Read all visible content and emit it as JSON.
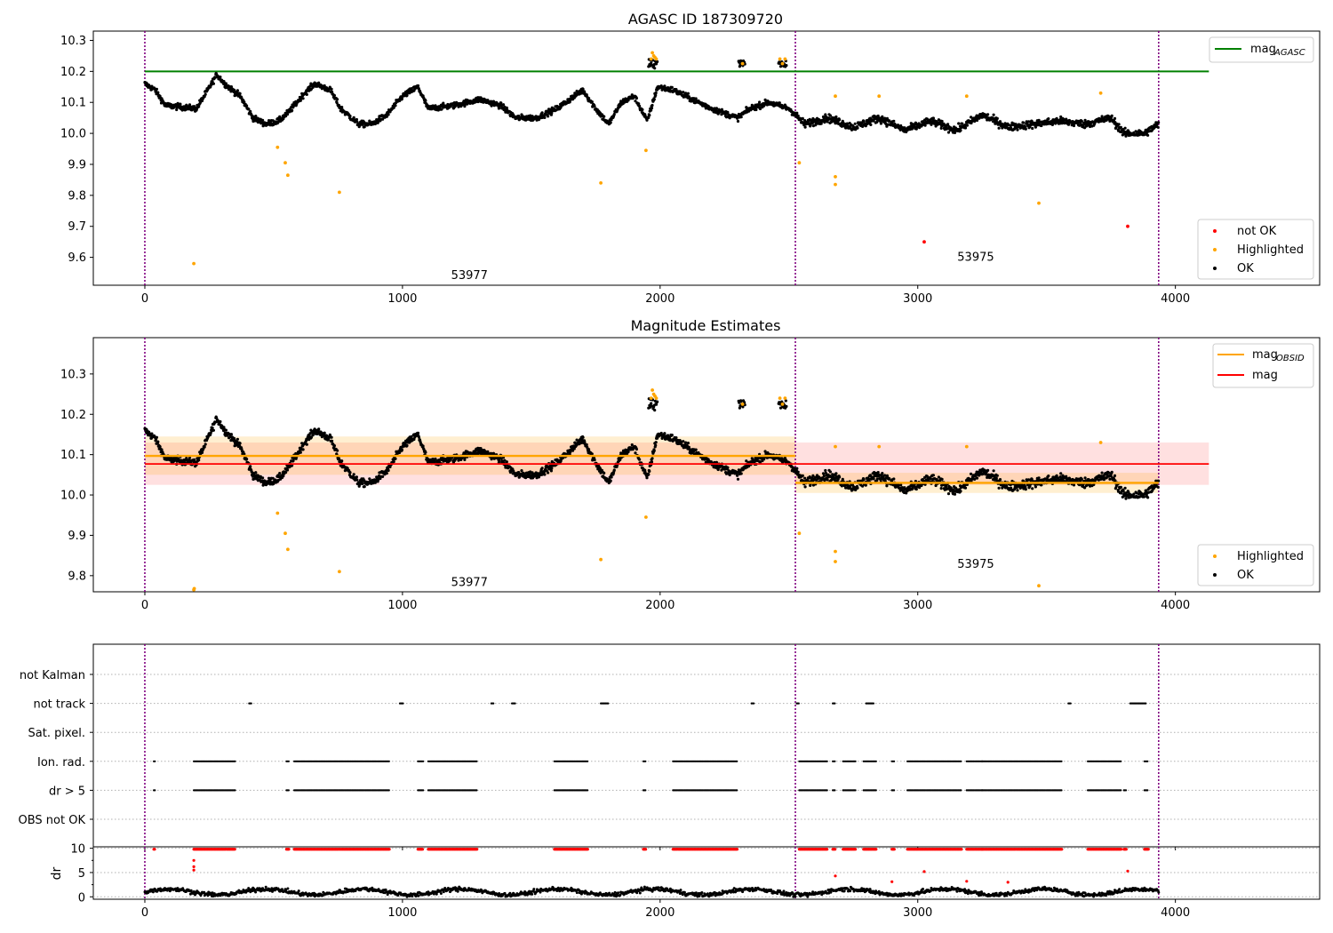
{
  "chart_data": [
    {
      "panel": "top",
      "type": "scatter",
      "title": "AGASC ID 187309720",
      "xlabel": "",
      "ylabel": "",
      "xlim": [
        -200,
        4560
      ],
      "ylim": [
        9.51,
        10.33
      ],
      "xticks": [
        0,
        1000,
        2000,
        3000,
        4000
      ],
      "yticks": [
        9.6,
        9.7,
        9.8,
        9.9,
        10.0,
        10.1,
        10.2,
        10.3
      ],
      "ytick_labels": [
        "9.6",
        "9.7",
        "9.8",
        "9.9",
        "10.0",
        "10.1",
        "10.2",
        "10.3"
      ],
      "grid": false,
      "obsid_boundaries": [
        0,
        2525,
        3935
      ],
      "annotations": [
        {
          "text": "53977",
          "x": 1260,
          "y": 9.545
        },
        {
          "text": "53975",
          "x": 3225,
          "y": 9.603
        }
      ],
      "agasc_mag": {
        "value": 10.2,
        "x": [
          0,
          4130
        ]
      },
      "legend_lines": {
        "position": "top-right",
        "entries": [
          {
            "label": "mag",
            "sub": "AGASC",
            "color": "#008000"
          }
        ]
      },
      "legend_points": {
        "position": "bottom-right",
        "entries": [
          {
            "label": "not OK",
            "color": "#ff0000"
          },
          {
            "label": "Highlighted",
            "color": "#ffa500"
          },
          {
            "label": "OK",
            "color": "#000000"
          }
        ]
      },
      "series": [
        {
          "name": "OK",
          "color": "#000000",
          "trend": [
            [
              0,
              10.16
            ],
            [
              40,
              10.14
            ],
            [
              80,
              10.09
            ],
            [
              200,
              10.08
            ],
            [
              230,
              10.12
            ],
            [
              280,
              10.19
            ],
            [
              310,
              10.16
            ],
            [
              370,
              10.12
            ],
            [
              420,
              10.05
            ],
            [
              470,
              10.03
            ],
            [
              520,
              10.04
            ],
            [
              560,
              10.07
            ],
            [
              620,
              10.13
            ],
            [
              660,
              10.16
            ],
            [
              720,
              10.14
            ],
            [
              760,
              10.08
            ],
            [
              830,
              10.03
            ],
            [
              880,
              10.03
            ],
            [
              940,
              10.06
            ],
            [
              1000,
              10.12
            ],
            [
              1060,
              10.15
            ],
            [
              1100,
              10.08
            ],
            [
              1200,
              10.09
            ],
            [
              1300,
              10.11
            ],
            [
              1380,
              10.09
            ],
            [
              1440,
              10.05
            ],
            [
              1520,
              10.05
            ],
            [
              1600,
              10.08
            ],
            [
              1700,
              10.14
            ],
            [
              1750,
              10.08
            ],
            [
              1800,
              10.03
            ],
            [
              1850,
              10.1
            ],
            [
              1900,
              10.12
            ],
            [
              1950,
              10.04
            ],
            [
              1990,
              10.15
            ],
            [
              2050,
              10.14
            ],
            [
              2100,
              10.12
            ],
            [
              2200,
              10.08
            ],
            [
              2300,
              10.05
            ],
            [
              2350,
              10.08
            ],
            [
              2420,
              10.1
            ],
            [
              2500,
              10.08
            ],
            [
              2525,
              10.06
            ],
            [
              2560,
              10.03
            ],
            [
              2650,
              10.05
            ],
            [
              2750,
              10.02
            ],
            [
              2850,
              10.05
            ],
            [
              2950,
              10.01
            ],
            [
              3050,
              10.04
            ],
            [
              3150,
              10.01
            ],
            [
              3250,
              10.06
            ],
            [
              3350,
              10.02
            ],
            [
              3450,
              10.03
            ],
            [
              3550,
              10.04
            ],
            [
              3650,
              10.03
            ],
            [
              3750,
              10.05
            ],
            [
              3800,
              10.0
            ],
            [
              3880,
              10.0
            ],
            [
              3935,
              10.03
            ]
          ]
        },
        {
          "name": "Highlighted",
          "color": "#ffa500",
          "points": [
            [
              190,
              9.58
            ],
            [
              515,
              9.955
            ],
            [
              545,
              9.905
            ],
            [
              555,
              9.865
            ],
            [
              755,
              9.81
            ],
            [
              1770,
              9.84
            ],
            [
              1945,
              9.945
            ],
            [
              2540,
              9.905
            ],
            [
              2680,
              9.835
            ],
            [
              2680,
              9.86
            ],
            [
              3470,
              9.775
            ],
            [
              1965,
              10.24
            ],
            [
              1970,
              10.26
            ],
            [
              1975,
              10.25
            ],
            [
              1980,
              10.245
            ],
            [
              1985,
              10.24
            ],
            [
              2320,
              10.225
            ],
            [
              2465,
              10.24
            ],
            [
              2475,
              10.225
            ],
            [
              2485,
              10.24
            ],
            [
              2680,
              10.12
            ],
            [
              2850,
              10.12
            ],
            [
              3190,
              10.12
            ],
            [
              3710,
              10.13
            ]
          ]
        },
        {
          "name": "not OK",
          "color": "#ff0000",
          "points": [
            [
              3025,
              9.65
            ],
            [
              3815,
              9.7
            ]
          ]
        }
      ]
    },
    {
      "panel": "middle",
      "type": "scatter",
      "title": "Magnitude Estimates",
      "xlabel": "",
      "ylabel": "",
      "xlim": [
        -200,
        4560
      ],
      "ylim": [
        9.76,
        10.39
      ],
      "xticks": [
        0,
        1000,
        2000,
        3000,
        4000
      ],
      "yticks": [
        9.8,
        9.9,
        10.0,
        10.1,
        10.2,
        10.3
      ],
      "ytick_labels": [
        "9.8",
        "9.9",
        "10.0",
        "10.1",
        "10.2",
        "10.3"
      ],
      "grid": false,
      "obsid_boundaries": [
        0,
        2525,
        3935
      ],
      "annotations": [
        {
          "text": "53977",
          "x": 1260,
          "y": 9.785
        },
        {
          "text": "53975",
          "x": 3225,
          "y": 9.83
        }
      ],
      "mag": {
        "value": 10.077,
        "band": [
          10.025,
          10.13
        ],
        "x": [
          0,
          4130
        ]
      },
      "mag_obsid": [
        {
          "x": [
            0,
            2525
          ],
          "value": 10.097,
          "band": [
            10.05,
            10.145
          ]
        },
        {
          "x": [
            2525,
            3935
          ],
          "value": 10.03,
          "band": [
            10.005,
            10.055
          ]
        }
      ],
      "legend_lines": {
        "position": "top-right",
        "entries": [
          {
            "label": "mag",
            "sub": "OBSID",
            "color": "#ffa500"
          },
          {
            "label": "mag",
            "sub": "",
            "color": "#ff0000"
          }
        ]
      },
      "legend_points": {
        "position": "bottom-right",
        "entries": [
          {
            "label": "Highlighted",
            "color": "#ffa500"
          },
          {
            "label": "OK",
            "color": "#000000"
          }
        ]
      }
    },
    {
      "panel": "flags",
      "type": "scatter",
      "ylabel": "",
      "xlim": [
        -200,
        4560
      ],
      "grid": true,
      "obsid_boundaries": [
        0,
        2525,
        3935
      ],
      "categories": [
        "not Kalman",
        "not track",
        "Sat. pixel.",
        "Ion. rad.",
        "dr > 5",
        "OBS not OK"
      ],
      "flag_segments": {
        "not track": [
          [
            405,
            415
          ],
          [
            990,
            1005
          ],
          [
            1345,
            1355
          ],
          [
            1425,
            1440
          ],
          [
            1770,
            1800
          ],
          [
            2355,
            2365
          ],
          [
            2530,
            2540
          ],
          [
            2670,
            2680
          ],
          [
            2800,
            2830
          ],
          [
            3585,
            3595
          ],
          [
            3825,
            3885
          ]
        ],
        "Ion. rad.": [
          [
            35,
            40
          ],
          [
            190,
            350
          ],
          [
            550,
            560
          ],
          [
            580,
            950
          ],
          [
            1060,
            1080
          ],
          [
            1100,
            1290
          ],
          [
            1590,
            1720
          ],
          [
            1935,
            1945
          ],
          [
            2050,
            2300
          ],
          [
            2540,
            2650
          ],
          [
            2670,
            2680
          ],
          [
            2710,
            2760
          ],
          [
            2790,
            2840
          ],
          [
            2900,
            2910
          ],
          [
            2960,
            3170
          ],
          [
            3190,
            3250
          ],
          [
            3250,
            3560
          ],
          [
            3660,
            3790
          ],
          [
            3880,
            3895
          ]
        ],
        "dr > 5": [
          [
            35,
            40
          ],
          [
            190,
            350
          ],
          [
            550,
            560
          ],
          [
            580,
            950
          ],
          [
            1060,
            1080
          ],
          [
            1100,
            1290
          ],
          [
            1590,
            1720
          ],
          [
            1935,
            1945
          ],
          [
            2050,
            2300
          ],
          [
            2540,
            2650
          ],
          [
            2670,
            2680
          ],
          [
            2710,
            2760
          ],
          [
            2790,
            2840
          ],
          [
            2900,
            2910
          ],
          [
            2960,
            3170
          ],
          [
            3190,
            3250
          ],
          [
            3250,
            3560
          ],
          [
            3660,
            3790
          ],
          [
            3800,
            3810
          ],
          [
            3880,
            3895
          ]
        ]
      }
    },
    {
      "panel": "dr",
      "type": "scatter",
      "ylabel": "dr",
      "xlim": [
        -200,
        4560
      ],
      "ylim": [
        -0.5,
        10.3
      ],
      "xticks": [
        0,
        1000,
        2000,
        3000,
        4000
      ],
      "xtick_labels": [
        "0",
        "1000",
        "2000",
        "3000",
        "4000"
      ],
      "yticks": [
        0,
        5,
        10
      ],
      "ytick_labels": [
        "0",
        "5",
        "10"
      ],
      "grid": true,
      "obsid_boundaries": [
        0,
        2525,
        3935
      ],
      "scattered_points": [
        [
          190,
          7.5
        ],
        [
          190,
          6.2
        ],
        [
          190,
          5.5
        ],
        [
          2680,
          4.3
        ],
        [
          3025,
          5.2
        ],
        [
          3815,
          5.3
        ],
        [
          3350,
          3.0
        ],
        [
          3190,
          3.2
        ],
        [
          2900,
          3.1
        ]
      ]
    }
  ]
}
